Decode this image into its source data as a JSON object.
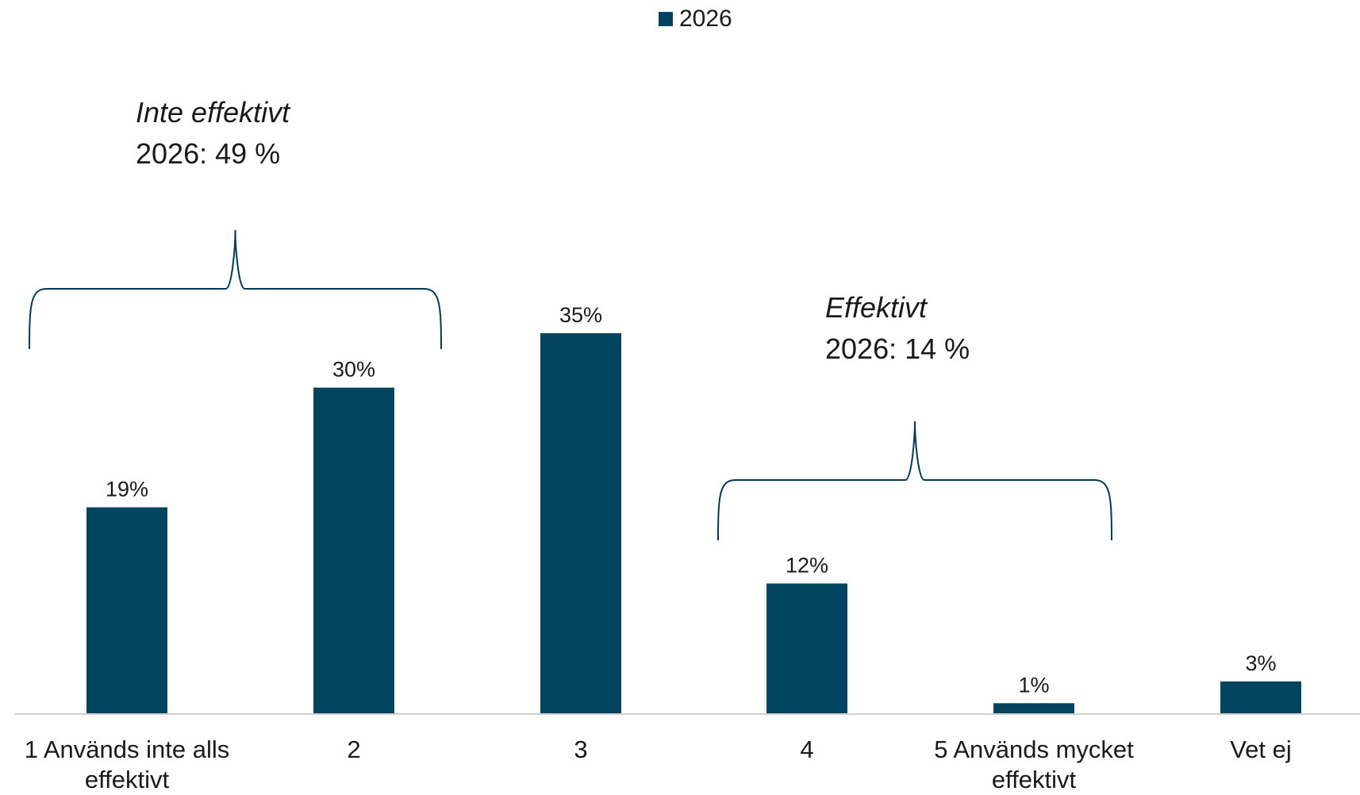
{
  "chart_data": {
    "type": "bar",
    "categories": [
      "1 Används inte alls\neffektivt",
      "2",
      "3",
      "4",
      "5 Används mycket\neffektivt",
      "Vet ej"
    ],
    "series": [
      {
        "name": "2026",
        "values": [
          19,
          30,
          35,
          12,
          1,
          3
        ],
        "color": "#02445f"
      }
    ],
    "data_labels": [
      "19%",
      "30%",
      "35%",
      "12%",
      "1%",
      "3%"
    ],
    "ylim": [
      0,
      35
    ],
    "grid": false,
    "legend_position": "top-center",
    "annotations": [
      {
        "title": "Inte effektivt",
        "text": "2026: 49 %",
        "spans_categories": [
          0,
          1
        ]
      },
      {
        "title": "Effektivt",
        "text": "2026: 14 %",
        "spans_categories": [
          3,
          4
        ]
      }
    ]
  }
}
